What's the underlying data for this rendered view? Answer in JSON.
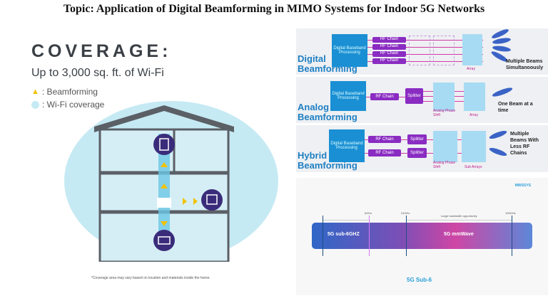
{
  "title": "Topic: Application of Digital Beamforming in MIMO Systems for Indoor 5G Networks",
  "coverage": {
    "heading": "COVERAGE:",
    "subheading": "Up to 3,000 sq. ft. of Wi-Fi",
    "legend": [
      ": Beamforming",
      ": Wi-Fi coverage"
    ],
    "note": "*Coverage area may vary based on location and materials inside the home."
  },
  "beamforming": {
    "digital": {
      "label1": "Digital",
      "label2": "Beamforming",
      "baseband": "Digital Baseband Processing",
      "rf": [
        "RF Chain",
        "RF Chain",
        "RF Chain",
        "RF Chain"
      ],
      "array": "Array",
      "caption": "Multiple Beams Simultanoously"
    },
    "analog": {
      "label1": "Analog",
      "label2": "Beamforming",
      "baseband": "Digital Baseband Processing",
      "rf": "RF Chain",
      "splitter": "Splitter",
      "phase": "Analog Phase Shift",
      "array": "Array",
      "caption": "One Beam at a time"
    },
    "hybrid": {
      "label1": "Hybrid",
      "label2": "Beamforming",
      "baseband": "Digital Baseband Processing",
      "rf": [
        "RF Chain",
        "RF Chain"
      ],
      "splitter": [
        "Splitter",
        "Splitter"
      ],
      "phase": "Analog Phase Shift",
      "array": "Sub Arrays",
      "caption": "Multiple Beams With Less RF Chains"
    }
  },
  "spectrum": {
    "logo": "MWSSYS",
    "ticks": [
      "6GHz",
      "24GHz",
      "100GHz"
    ],
    "opportunity": "Large bandwidth opportunity",
    "sub6": "5G sub-6GHZ",
    "mmwave": "5G mmWave",
    "caption": "5G Sub-6"
  },
  "colors": {
    "accent": "#1e7fc3",
    "rf": "#8a2cc2",
    "coverage": "#c6eaf3"
  }
}
